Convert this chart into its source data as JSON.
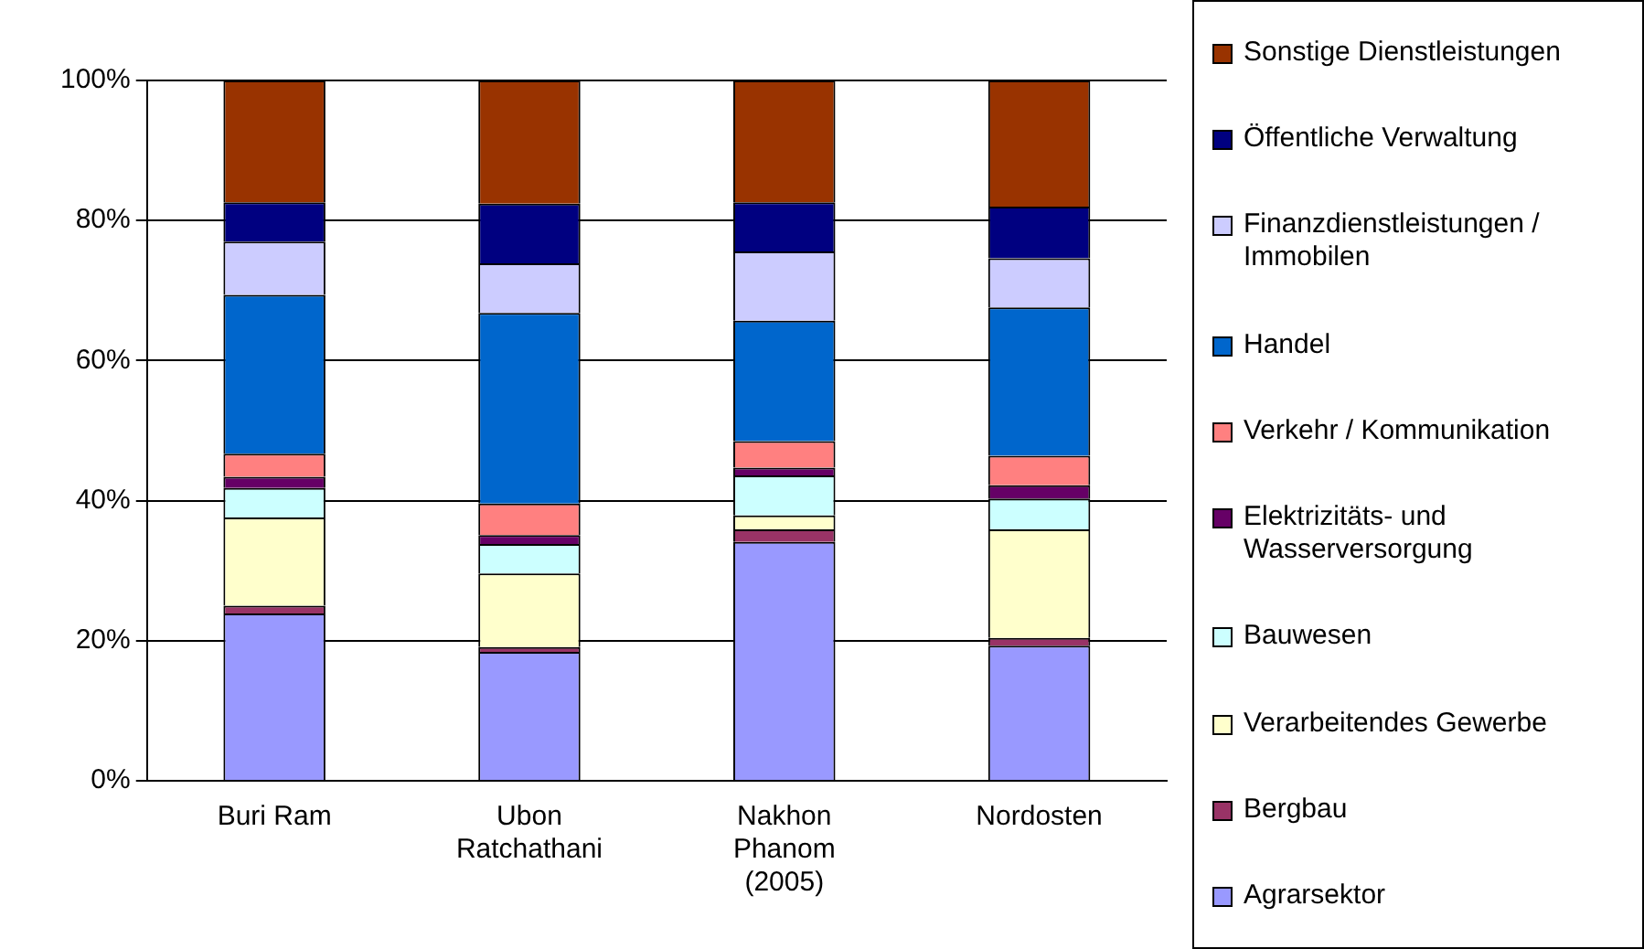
{
  "chart_data": {
    "type": "bar",
    "stacked": true,
    "categories": [
      "Buri Ram",
      "Ubon Ratchathani",
      "Nakhon Phanom (2005)",
      "Nordosten"
    ],
    "series": [
      {
        "name": "Agrarsektor",
        "color": "#9999ff",
        "values": [
          23.9,
          18.4,
          34.1,
          19.3
        ]
      },
      {
        "name": "Bergbau",
        "color": "#993366",
        "values": [
          1.1,
          0.7,
          1.8,
          1.1
        ]
      },
      {
        "name": "Verarbeitendes Gewerbe",
        "color": "#ffffcc",
        "values": [
          12.6,
          10.5,
          2.0,
          15.5
        ]
      },
      {
        "name": "Bauwesen",
        "color": "#ccffff",
        "values": [
          4.2,
          4.2,
          5.7,
          4.4
        ]
      },
      {
        "name": "Elektrizitäts- und Wasserversorgung",
        "color": "#660066",
        "values": [
          1.6,
          1.3,
          1.1,
          1.9
        ]
      },
      {
        "name": "Verkehr / Kommunikation",
        "color": "#ff8080",
        "values": [
          3.3,
          4.5,
          3.8,
          4.2
        ]
      },
      {
        "name": "Handel",
        "color": "#0066cc",
        "values": [
          22.7,
          27.2,
          17.2,
          21.2
        ]
      },
      {
        "name": "Finanzdienstleistungen / Immobilen",
        "color": "#ccccff",
        "values": [
          7.6,
          7.1,
          9.9,
          7.0
        ]
      },
      {
        "name": "Öffentliche Verwaltung",
        "color": "#000080",
        "values": [
          5.6,
          8.5,
          7.0,
          7.4
        ]
      },
      {
        "name": "Sonstige Dienstleistungen",
        "color": "#993300",
        "values": [
          17.4,
          17.6,
          17.4,
          18.0
        ]
      }
    ],
    "ylim": [
      0,
      100
    ],
    "yticks": [
      {
        "value": 0,
        "label": "0%"
      },
      {
        "value": 20,
        "label": "20%"
      },
      {
        "value": 40,
        "label": "40%"
      },
      {
        "value": 60,
        "label": "60%"
      },
      {
        "value": 80,
        "label": "80%"
      },
      {
        "value": 100,
        "label": "100%"
      }
    ],
    "grid": "y",
    "legend": "right"
  }
}
